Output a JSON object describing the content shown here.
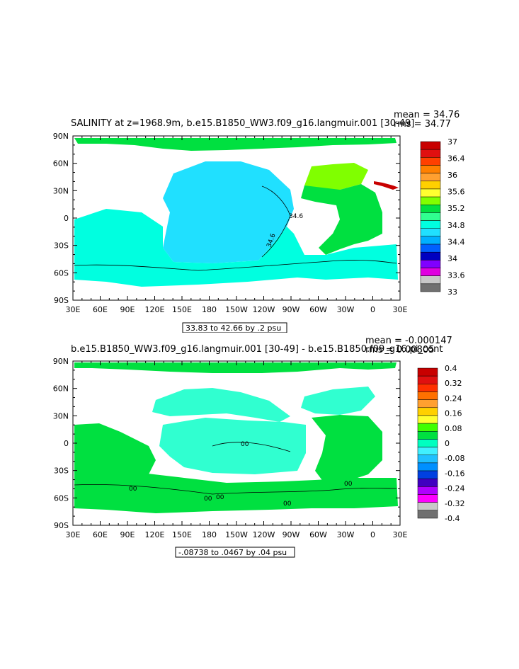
{
  "panels": [
    {
      "title": "SALINITY at z=1968.9m, b.e15.B1850_WW3.f09_g16.langmuir.001 [30-49]",
      "mean_text": "mean = 34.76",
      "rms_text": "rms = 34.77",
      "contour_info": "33.83 to 42.66 by .2 psu",
      "colorbar": {
        "labels": [
          "37",
          "36.4",
          "36",
          "35.6",
          "35.2",
          "34.8",
          "34.4",
          "34",
          "33.6",
          "33"
        ],
        "colors": [
          "#c80000",
          "#e01010",
          "#ff4000",
          "#ff8000",
          "#ffa030",
          "#ffd000",
          "#ffff30",
          "#80ff00",
          "#00e040",
          "#30ff90",
          "#00ffe0",
          "#20e0ff",
          "#00b0ff",
          "#0060ff",
          "#0000c0",
          "#8000ff",
          "#e000e0",
          "#c8c8c8",
          "#707070"
        ]
      },
      "contour_labels": [
        "34.6",
        "34.6"
      ]
    },
    {
      "title": "b.e15.B1850_WW3.f09_g16.langmuir.001 [30-49] - b.e15.B1850.f09_g16.pi_cont",
      "mean_text": "mean = -0.000147",
      "rms_text": "rms = 0.00805",
      "contour_info": "-.08738 to .0467 by .04 psu",
      "colorbar": {
        "labels": [
          "0.4",
          "0.32",
          "0.24",
          "0.16",
          "0.08",
          "0",
          "-0.08",
          "-0.16",
          "-0.24",
          "-0.32",
          "-0.4"
        ],
        "colors": [
          "#c80000",
          "#e01010",
          "#ff3000",
          "#ff7000",
          "#ffa030",
          "#ffd000",
          "#ffff30",
          "#40ff00",
          "#00e040",
          "#00ffc0",
          "#40f0ff",
          "#20c0ff",
          "#0090ff",
          "#0040e0",
          "#4000c0",
          "#b000ff",
          "#ff00ff",
          "#c8c8c8",
          "#707070"
        ]
      },
      "contour_labels": [
        "00",
        "00",
        "00",
        "00",
        "00",
        "00"
      ]
    }
  ],
  "axes": {
    "y_ticks": [
      "90N",
      "60N",
      "30N",
      "0",
      "30S",
      "60S",
      "90S"
    ],
    "x_ticks": [
      "30E",
      "60E",
      "90E",
      "120E",
      "150E",
      "180",
      "150W",
      "120W",
      "90W",
      "60W",
      "30W",
      "0",
      "30E"
    ]
  },
  "map_colors": {
    "ocean_salinity_pacific": "#20e0ff",
    "ocean_salinity_indian": "#00ffe0",
    "ocean_salinity_atlantic": "#00e040",
    "ocean_salinity_arctic": "#00e040",
    "ocean_salinity_north_atlantic": "#80ff00",
    "ocean_diff_positive": "#00e040",
    "ocean_diff_zero": "#30ffd0",
    "land": "#ffffff"
  }
}
